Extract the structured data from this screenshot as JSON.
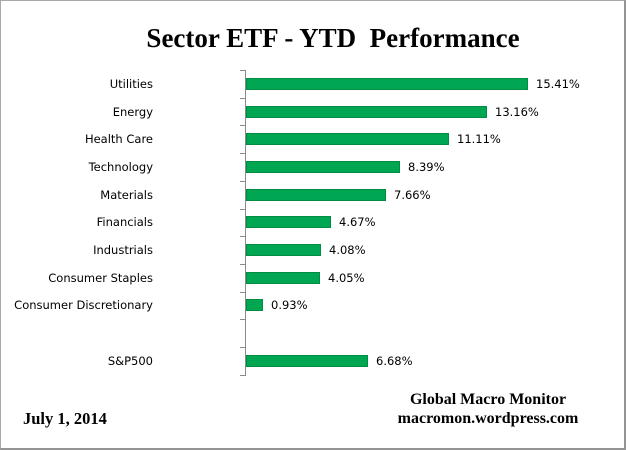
{
  "title": "Sector ETF - YTD  Performance",
  "chart_data": {
    "type": "bar",
    "orientation": "horizontal",
    "title": "Sector ETF - YTD  Performance",
    "xlabel": "",
    "ylabel": "",
    "value_axis_range": [
      -5,
      20
    ],
    "grid": false,
    "legend": "none",
    "bar_color": "#00A651",
    "bar_border_color": "#008C43",
    "axis_color": "#8a8a8a",
    "rows": [
      {
        "label": "Utilities",
        "value": 15.41,
        "display": "15.41%"
      },
      {
        "label": "Energy",
        "value": 13.16,
        "display": "13.16%"
      },
      {
        "label": "Health Care",
        "value": 11.11,
        "display": "11.11%"
      },
      {
        "label": "Technology",
        "value": 8.39,
        "display": "8.39%"
      },
      {
        "label": "Materials",
        "value": 7.66,
        "display": "7.66%"
      },
      {
        "label": "Financials",
        "value": 4.67,
        "display": "4.67%"
      },
      {
        "label": "Industrials",
        "value": 4.08,
        "display": "4.08%"
      },
      {
        "label": "Consumer Staples",
        "value": 4.05,
        "display": "4.05%"
      },
      {
        "label": "Consumer Discretionary",
        "value": 0.93,
        "display": "0.93%"
      },
      {
        "spacer": true
      },
      {
        "label": "S&P500",
        "value": 6.68,
        "display": "6.68%"
      }
    ]
  },
  "footer": {
    "date": "July 1, 2014",
    "source_line1": "Global Macro Monitor",
    "source_line2": "macromon.wordpress.com"
  }
}
